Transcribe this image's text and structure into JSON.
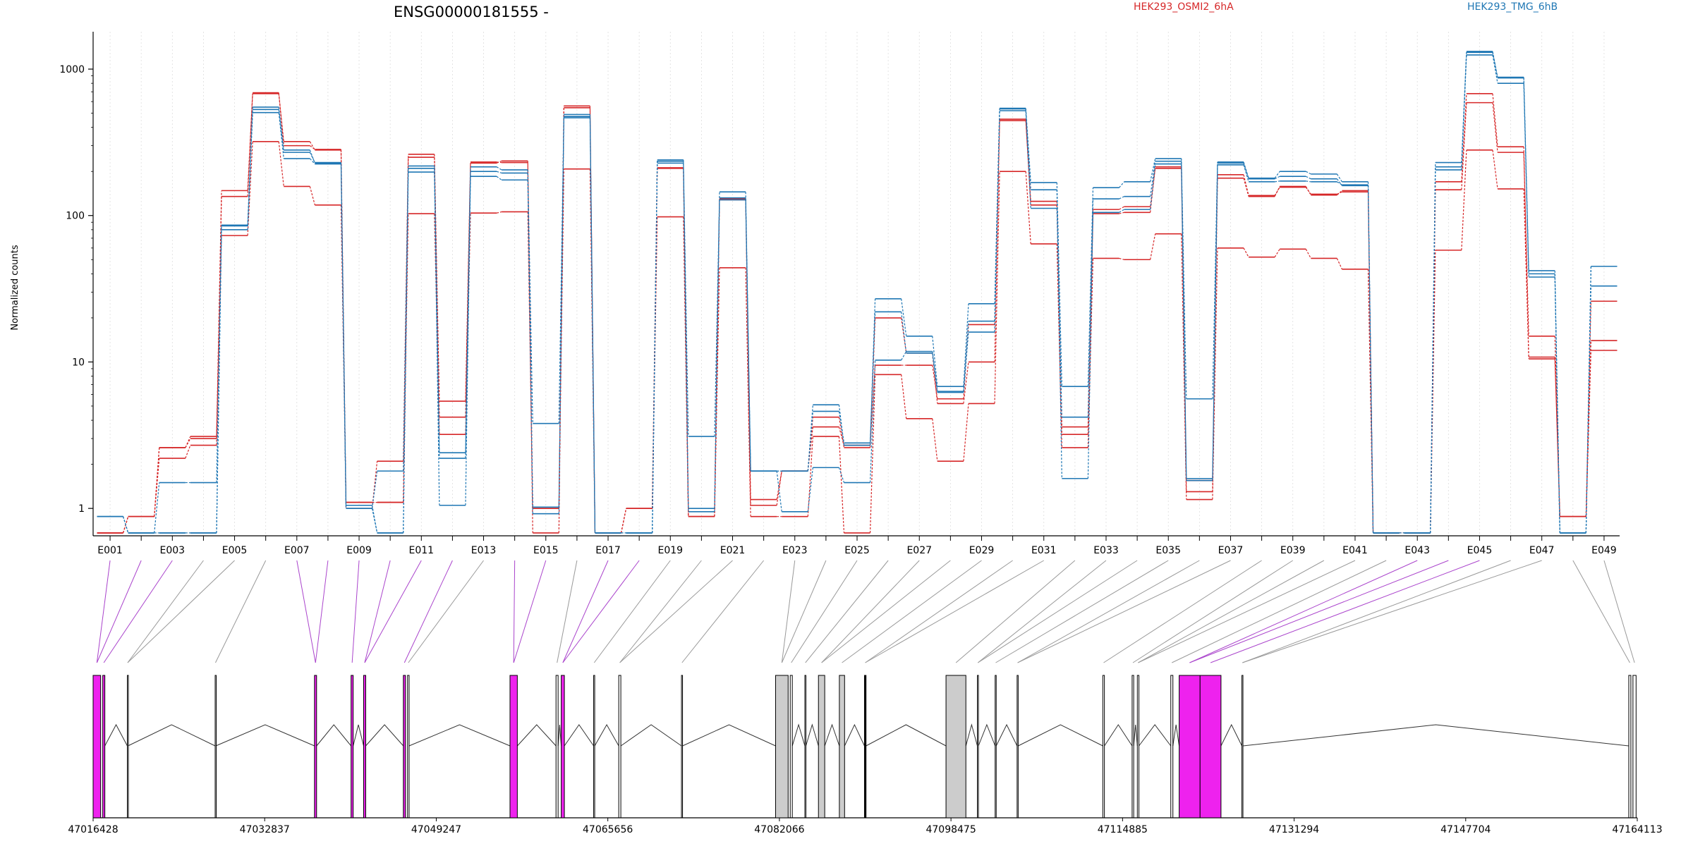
{
  "chart_data": {
    "type": "line",
    "title": "ENSG00000181555 -",
    "ylabel": "Normalized counts",
    "y_scale": "log",
    "ylim": [
      0.65,
      1800
    ],
    "yticks": [
      1,
      10,
      100,
      1000
    ],
    "ytick_labels": [
      "1",
      "10",
      "100",
      "1000"
    ],
    "grid": "vertical dotted lines per exon",
    "categories": [
      "E001",
      "E002",
      "E003",
      "E004",
      "E005",
      "E006",
      "E007",
      "E008",
      "E009",
      "E010",
      "E011",
      "E012",
      "E013",
      "E014",
      "E015",
      "E016",
      "E017",
      "E018",
      "E019",
      "E020",
      "E021",
      "E022",
      "E023",
      "E024",
      "E025",
      "E026",
      "E027",
      "E028",
      "E029",
      "E030",
      "E031",
      "E032",
      "E033",
      "E034",
      "E035",
      "E036",
      "E037",
      "E038",
      "E039",
      "E040",
      "E041",
      "E042",
      "E043",
      "E044",
      "E045",
      "E046",
      "E047",
      "E048",
      "E049"
    ],
    "x_tick_labels": [
      "E001",
      "E003",
      "E005",
      "E007",
      "E009",
      "E011",
      "E013",
      "E015",
      "E017",
      "E019",
      "E021",
      "E023",
      "E025",
      "E027",
      "E029",
      "E031",
      "E033",
      "E035",
      "E037",
      "E039",
      "E041",
      "E043",
      "E045",
      "E047",
      "E049"
    ],
    "legend": [
      "HEK293_OSMI2_6hA",
      "HEK293_TMG_6hB"
    ],
    "legend_placement": "top",
    "series": [
      {
        "name": "HEK293_OSMI2_6hA",
        "color": "#d62728",
        "values": [
          0.68,
          0.88,
          2.6,
          3.0,
          135,
          680,
          320,
          280,
          1.1,
          1.1,
          250,
          5.4,
          232,
          230,
          1.0,
          545,
          0.68,
          1.0,
          210,
          0.88,
          130,
          1.05,
          1.8,
          4.2,
          2.6,
          20,
          11.5,
          5.2,
          10,
          445,
          125,
          3.6,
          110,
          115,
          210,
          1.3,
          180,
          135,
          158,
          138,
          148,
          0.68,
          0.68,
          170,
          680,
          295,
          10.5,
          0.88,
          26
        ]
      },
      {
        "name": "HEK293_OSMI2_6hA",
        "color": "#d62728",
        "values": [
          0.68,
          0.88,
          2.2,
          2.7,
          148,
          690,
          300,
          283,
          1.0,
          2.1,
          262,
          4.2,
          228,
          236,
          0.68,
          560,
          0.68,
          1.0,
          212,
          0.88,
          128,
          1.15,
          1.8,
          3.6,
          2.7,
          9.5,
          9.5,
          5.6,
          18,
          455,
          118,
          3.2,
          103,
          105,
          215,
          1.55,
          190,
          137,
          156,
          140,
          145,
          0.68,
          0.68,
          150,
          590,
          270,
          15,
          0.88,
          14
        ]
      },
      {
        "name": "HEK293_OSMI2_6hA",
        "color": "#d62728",
        "values": [
          0.68,
          0.88,
          2.6,
          3.1,
          73,
          320,
          158,
          118,
          1.1,
          1.1,
          103,
          3.2,
          104,
          106,
          1.0,
          208,
          0.68,
          1.0,
          98,
          0.88,
          44,
          0.88,
          0.88,
          3.1,
          0.68,
          8.2,
          4.1,
          2.1,
          5.2,
          200,
          64,
          2.6,
          51,
          50,
          75,
          1.15,
          60,
          52,
          59,
          51,
          43,
          0.68,
          0.68,
          58,
          280,
          152,
          10.8,
          0.88,
          12
        ]
      },
      {
        "name": "HEK293_TMG_6hB",
        "color": "#1f77b4",
        "values": [
          0.88,
          0.68,
          1.5,
          1.5,
          86,
          550,
          280,
          228,
          1.0,
          1.8,
          210,
          2.2,
          200,
          195,
          0.92,
          490,
          0.68,
          0.68,
          235,
          3.1,
          128,
          1.8,
          1.8,
          4.6,
          2.8,
          22,
          11.5,
          6.2,
          19,
          520,
          112,
          4.2,
          130,
          135,
          235,
          5.6,
          228,
          178,
          185,
          178,
          160,
          0.68,
          0.68,
          215,
          1320,
          870,
          42,
          0.68,
          45
        ]
      },
      {
        "name": "HEK293_TMG_6hB",
        "color": "#1f77b4",
        "values": [
          0.88,
          0.68,
          0.68,
          0.68,
          85,
          530,
          270,
          230,
          1.0,
          0.68,
          218,
          2.4,
          215,
          205,
          3.8,
          475,
          0.68,
          0.68,
          240,
          1.0,
          132,
          1.8,
          1.8,
          5.1,
          2.7,
          27,
          15,
          6.8,
          25,
          540,
          168,
          6.8,
          155,
          170,
          245,
          1.55,
          232,
          180,
          200,
          192,
          170,
          0.68,
          0.68,
          230,
          1300,
          880,
          38,
          0.68,
          33
        ]
      },
      {
        "name": "HEK293_TMG_6hB",
        "color": "#1f77b4",
        "values": [
          0.88,
          0.68,
          0.68,
          0.68,
          80,
          505,
          245,
          225,
          1.05,
          0.68,
          198,
          1.05,
          185,
          175,
          1.02,
          465,
          0.68,
          0.68,
          228,
          0.95,
          145,
          1.8,
          0.95,
          1.9,
          1.5,
          10.3,
          11.8,
          6.3,
          16,
          535,
          150,
          1.6,
          105,
          110,
          225,
          1.6,
          222,
          170,
          172,
          170,
          162,
          0.68,
          0.68,
          205,
          1250,
          800,
          40,
          0.68,
          45
        ]
      }
    ],
    "gene_model": {
      "coordinates": [
        "47016428",
        "47032837",
        "47049247",
        "47065656",
        "47082066",
        "47098475",
        "47114885",
        "47131294",
        "47147704",
        "47164113"
      ],
      "genomic_range": [
        47016428,
        47164113
      ],
      "highlight_color": "#ee22ee",
      "exons": [
        {
          "start": 47016428,
          "end": 47017150,
          "fill": "highlight"
        },
        {
          "start": 47017350,
          "end": 47017550,
          "fill": "highlight"
        },
        {
          "start": 47019700,
          "end": 47019760,
          "fill": "none"
        },
        {
          "start": 47028100,
          "end": 47028160,
          "fill": "none"
        },
        {
          "start": 47037600,
          "end": 47037800,
          "fill": "highlight"
        },
        {
          "start": 47041100,
          "end": 47041300,
          "fill": "highlight"
        },
        {
          "start": 47042300,
          "end": 47042500,
          "fill": "highlight"
        },
        {
          "start": 47046100,
          "end": 47046300,
          "fill": "highlight"
        },
        {
          "start": 47046500,
          "end": 47046650,
          "fill": "none"
        },
        {
          "start": 47056300,
          "end": 47057000,
          "fill": "highlight"
        },
        {
          "start": 47060700,
          "end": 47060900,
          "fill": "none"
        },
        {
          "start": 47061200,
          "end": 47061500,
          "fill": "highlight"
        },
        {
          "start": 47064300,
          "end": 47064400,
          "fill": "none"
        },
        {
          "start": 47066700,
          "end": 47066900,
          "fill": "none"
        },
        {
          "start": 47072700,
          "end": 47072800,
          "fill": "none"
        },
        {
          "start": 47081700,
          "end": 47082900,
          "fill": "gray"
        },
        {
          "start": 47083100,
          "end": 47083300,
          "fill": "none"
        },
        {
          "start": 47084500,
          "end": 47084600,
          "fill": "none"
        },
        {
          "start": 47085800,
          "end": 47086400,
          "fill": "gray"
        },
        {
          "start": 47087800,
          "end": 47088300,
          "fill": "gray"
        },
        {
          "start": 47090200,
          "end": 47090350,
          "fill": "black"
        },
        {
          "start": 47098000,
          "end": 47099900,
          "fill": "gray"
        },
        {
          "start": 47101000,
          "end": 47101100,
          "fill": "none"
        },
        {
          "start": 47102700,
          "end": 47102800,
          "fill": "none"
        },
        {
          "start": 47104800,
          "end": 47104900,
          "fill": "none"
        },
        {
          "start": 47113000,
          "end": 47113150,
          "fill": "none"
        },
        {
          "start": 47115800,
          "end": 47115950,
          "fill": "none"
        },
        {
          "start": 47116300,
          "end": 47116450,
          "fill": "none"
        },
        {
          "start": 47119500,
          "end": 47119700,
          "fill": "none"
        },
        {
          "start": 47120300,
          "end": 47122300,
          "fill": "highlight"
        },
        {
          "start": 47122300,
          "end": 47124300,
          "fill": "highlight"
        },
        {
          "start": 47126300,
          "end": 47126400,
          "fill": "none"
        },
        {
          "start": 47163300,
          "end": 47163500,
          "fill": "none"
        },
        {
          "start": 47163700,
          "end": 47164000,
          "fill": "none"
        }
      ]
    }
  }
}
